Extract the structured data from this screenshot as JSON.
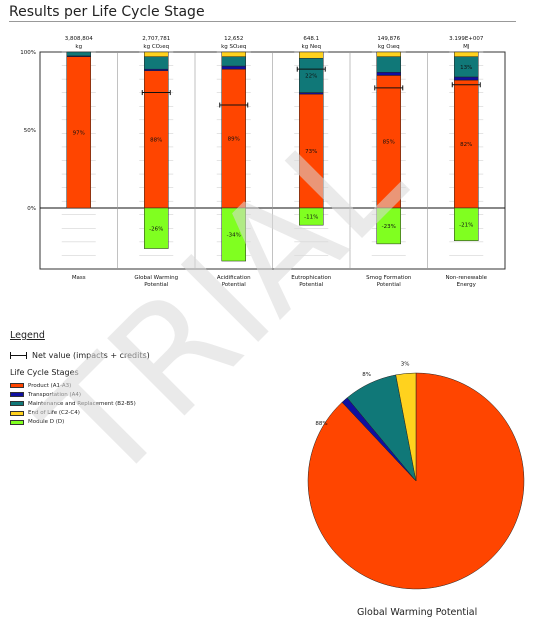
{
  "report_title": "Results per Life Cycle Stage",
  "legend": {
    "title": "Legend",
    "net_label": "Net value (impacts + credits)",
    "stages_title": "Life Cycle Stages"
  },
  "colors": {
    "Product (A1-A3)": "#FF4500",
    "Transportation (A4)": "#1010A0",
    "Maintenance and Replacement (B2-B5)": "#107878",
    "End of Life (C2-C4)": "#FFD21E",
    "Module D (D)": "#80FF20"
  },
  "watermark": "TRIAL",
  "chart_data": [
    {
      "type": "bar",
      "subtype": "stacked-100",
      "ylim": [
        -50,
        100
      ],
      "yticks": [
        100,
        50,
        0
      ],
      "ytick_labels": [
        "100%",
        "50%",
        "0%"
      ],
      "grid": true,
      "categories": [
        {
          "label": "Mass",
          "total": "3,808,804",
          "unit": "kg",
          "net": null
        },
        {
          "label": "Global Warming Potential",
          "total": "2,707,781",
          "unit": "kg CO₂eq",
          "net": 74
        },
        {
          "label": "Acidification Potential",
          "total": "12,652",
          "unit": "kg SO₂eq",
          "net": 66
        },
        {
          "label": "Eutrophication Potential",
          "total": "648.1",
          "unit": "kg Neq",
          "net": 89
        },
        {
          "label": "Smog Formation Potential",
          "total": "149,876",
          "unit": "kg O₃eq",
          "net": 77
        },
        {
          "label": "Non-renewable Energy",
          "total": "3.199E+007",
          "unit": "MJ",
          "net": 79
        }
      ],
      "series": [
        {
          "name": "Product (A1-A3)",
          "values": [
            97,
            88,
            89,
            73,
            85,
            82
          ],
          "labels": [
            "97%",
            "88%",
            "89%",
            "73%",
            "85%",
            "82%"
          ]
        },
        {
          "name": "Transportation (A4)",
          "values": [
            0.5,
            1,
            2,
            1,
            2,
            2
          ],
          "labels": [
            "",
            "",
            "",
            "",
            "",
            ""
          ]
        },
        {
          "name": "Maintenance and Replacement (B2-B5)",
          "values": [
            2.5,
            8,
            6,
            22,
            10,
            13
          ],
          "labels": [
            "",
            "",
            "",
            "22%",
            "",
            "13%"
          ]
        },
        {
          "name": "End of Life (C2-C4)",
          "values": [
            0,
            3,
            3,
            4,
            3,
            3
          ],
          "labels": [
            "",
            "",
            "",
            "",
            "",
            ""
          ]
        },
        {
          "name": "Module D (D)",
          "values": [
            0,
            -26,
            -34,
            -11,
            -23,
            -21
          ],
          "labels": [
            "",
            "-26%",
            "-34%",
            "-11%",
            "-23%",
            "-21%"
          ]
        }
      ]
    },
    {
      "type": "pie",
      "title": "Global Warming Potential",
      "slices": [
        {
          "name": "Product (A1-A3)",
          "value": 88,
          "label": "88%"
        },
        {
          "name": "Transportation (A4)",
          "value": 1,
          "label": ""
        },
        {
          "name": "Maintenance and Replacement (B2-B5)",
          "value": 8,
          "label": "8%"
        },
        {
          "name": "End of Life (C2-C4)",
          "value": 3,
          "label": "3%"
        }
      ]
    }
  ]
}
